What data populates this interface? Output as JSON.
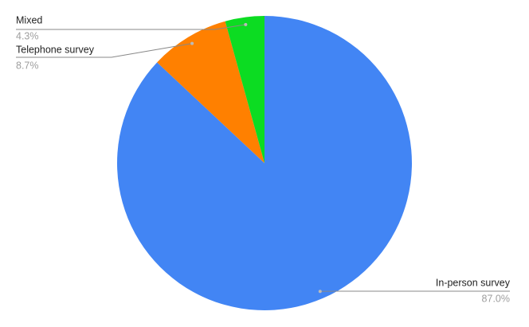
{
  "chart_data": {
    "type": "pie",
    "categories": [
      "In-person survey",
      "Telephone survey",
      "Mixed"
    ],
    "values": [
      87,
      8.7,
      4.3
    ],
    "value_labels": [
      "87.0%",
      "8.7%",
      "4.3%"
    ],
    "colors": [
      "#4285f4",
      "#ff8000",
      "#0cdc22"
    ]
  }
}
